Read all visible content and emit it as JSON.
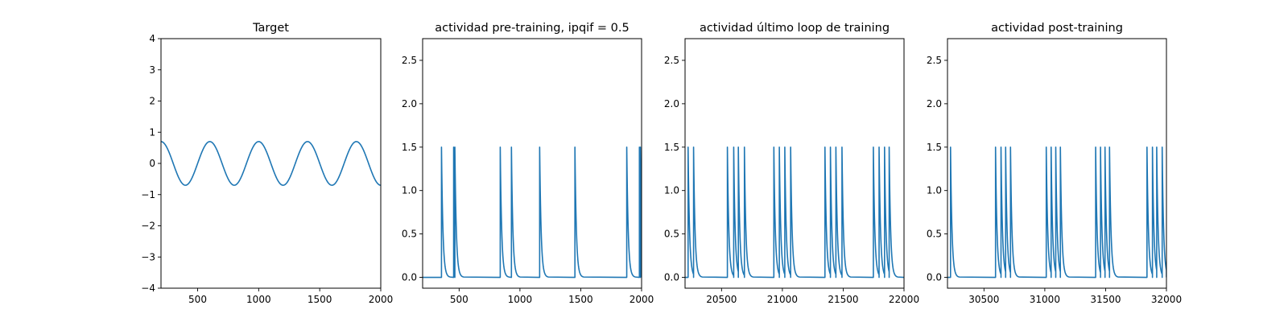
{
  "chart_data": [
    {
      "type": "line",
      "title": "Target",
      "xlim": [
        200,
        2000
      ],
      "ylim": [
        -4,
        4
      ],
      "xticks": [
        500,
        1000,
        1500,
        2000
      ],
      "yticks": [
        -4,
        -3,
        -2,
        -1,
        0,
        1,
        2,
        3,
        4
      ],
      "xtick_labels": [
        "500",
        "1000",
        "1500",
        "2000"
      ],
      "ytick_labels": [
        "−4",
        "−3",
        "−2",
        "−1",
        "0",
        "1",
        "2",
        "3",
        "4"
      ],
      "series": [
        {
          "kind": "sine",
          "amplitude": 0.7,
          "period": 400,
          "peak_at": 200,
          "x_range": [
            200,
            2000
          ],
          "color": "#1f77b4"
        }
      ]
    },
    {
      "type": "line",
      "title": "actividad pre-training, ipqif = 0.5",
      "xlim": [
        200,
        2000
      ],
      "ylim": [
        -0.125,
        2.75
      ],
      "xticks": [
        500,
        1000,
        1500,
        2000
      ],
      "yticks": [
        0.0,
        0.5,
        1.0,
        1.5,
        2.0,
        2.5
      ],
      "xtick_labels": [
        "500",
        "1000",
        "1500",
        "2000"
      ],
      "ytick_labels": [
        "0.0",
        "0.5",
        "1.0",
        "1.5",
        "2.0",
        "2.5"
      ],
      "series": [
        {
          "kind": "spikes",
          "baseline": 0.0,
          "peak": 1.5,
          "decay": 12,
          "x_range": [
            200,
            2000
          ],
          "spike_times": [
            355,
            455,
            465,
            838,
            930,
            1162,
            1452,
            1878,
            1982,
            1990
          ],
          "color": "#1f77b4"
        }
      ]
    },
    {
      "type": "line",
      "title": "actividad último loop de training",
      "xlim": [
        20200,
        22000
      ],
      "ylim": [
        -0.125,
        2.75
      ],
      "xticks": [
        20500,
        21000,
        21500,
        22000
      ],
      "yticks": [
        0.0,
        0.5,
        1.0,
        1.5,
        2.0,
        2.5
      ],
      "xtick_labels": [
        "20500",
        "21000",
        "21500",
        "22000"
      ],
      "ytick_labels": [
        "0.0",
        "0.5",
        "1.0",
        "1.5",
        "2.0",
        "2.5"
      ],
      "series": [
        {
          "kind": "spikes",
          "baseline": 0.0,
          "peak": 1.5,
          "decay": 12,
          "x_range": [
            20200,
            22000
          ],
          "spike_times": [
            20225,
            20270,
            20548,
            20600,
            20638,
            20688,
            20930,
            20975,
            21020,
            21068,
            21350,
            21395,
            21440,
            21490,
            21748,
            21795,
            21840,
            21878
          ],
          "color": "#1f77b4"
        }
      ]
    },
    {
      "type": "line",
      "title": "actividad post-training",
      "xlim": [
        30200,
        32000
      ],
      "ylim": [
        -0.125,
        2.75
      ],
      "xticks": [
        30500,
        31000,
        31500,
        32000
      ],
      "yticks": [
        0.0,
        0.5,
        1.0,
        1.5,
        2.0,
        2.5
      ],
      "xtick_labels": [
        "30500",
        "31000",
        "31500",
        "32000"
      ],
      "ytick_labels": [
        "0.0",
        "0.5",
        "1.0",
        "1.5",
        "2.0",
        "2.5"
      ],
      "series": [
        {
          "kind": "spikes",
          "baseline": 0.0,
          "peak": 1.5,
          "decay": 12,
          "x_range": [
            30200,
            32000
          ],
          "spike_times": [
            30225,
            30595,
            30640,
            30678,
            30718,
            31012,
            31052,
            31090,
            31128,
            31418,
            31458,
            31495,
            31532,
            31840,
            31885,
            31920,
            31965
          ],
          "color": "#1f77b4"
        }
      ]
    }
  ]
}
